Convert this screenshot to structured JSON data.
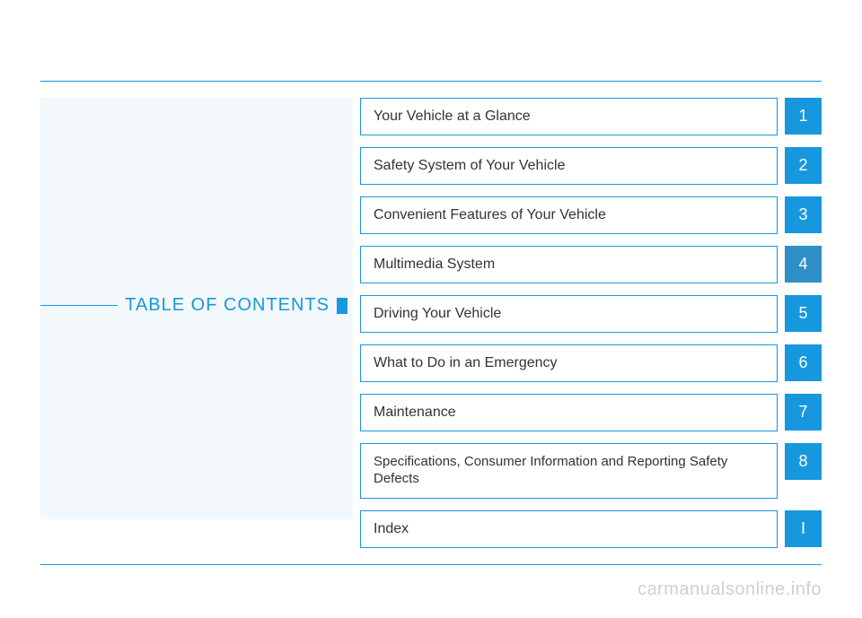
{
  "page_title": "TABLE OF CONTENTS",
  "colors": {
    "accent": "#1798de",
    "accent_alt": "#2f8fc7",
    "panel_bg": "#f2f8fb",
    "text": "#333333",
    "num_text": "#ffffff",
    "watermark": "#d0d0d0"
  },
  "items": [
    {
      "label": "Your Vehicle at a Glance",
      "num": "1",
      "alt": false
    },
    {
      "label": "Safety System of Your Vehicle",
      "num": "2",
      "alt": false
    },
    {
      "label": "Convenient Features of Your Vehicle",
      "num": "3",
      "alt": false
    },
    {
      "label": "Multimedia System",
      "num": "4",
      "alt": true
    },
    {
      "label": "Driving Your Vehicle",
      "num": "5",
      "alt": false
    },
    {
      "label": "What to Do in an Emergency",
      "num": "6",
      "alt": false
    },
    {
      "label": "Maintenance",
      "num": "7",
      "alt": false
    },
    {
      "label": "Specifications, Consumer Information and Reporting Safety Defects",
      "num": "8",
      "alt": false,
      "tall": true
    },
    {
      "label": "Index",
      "num": "I",
      "alt": false
    }
  ],
  "watermark": "carmanualsonline.info"
}
